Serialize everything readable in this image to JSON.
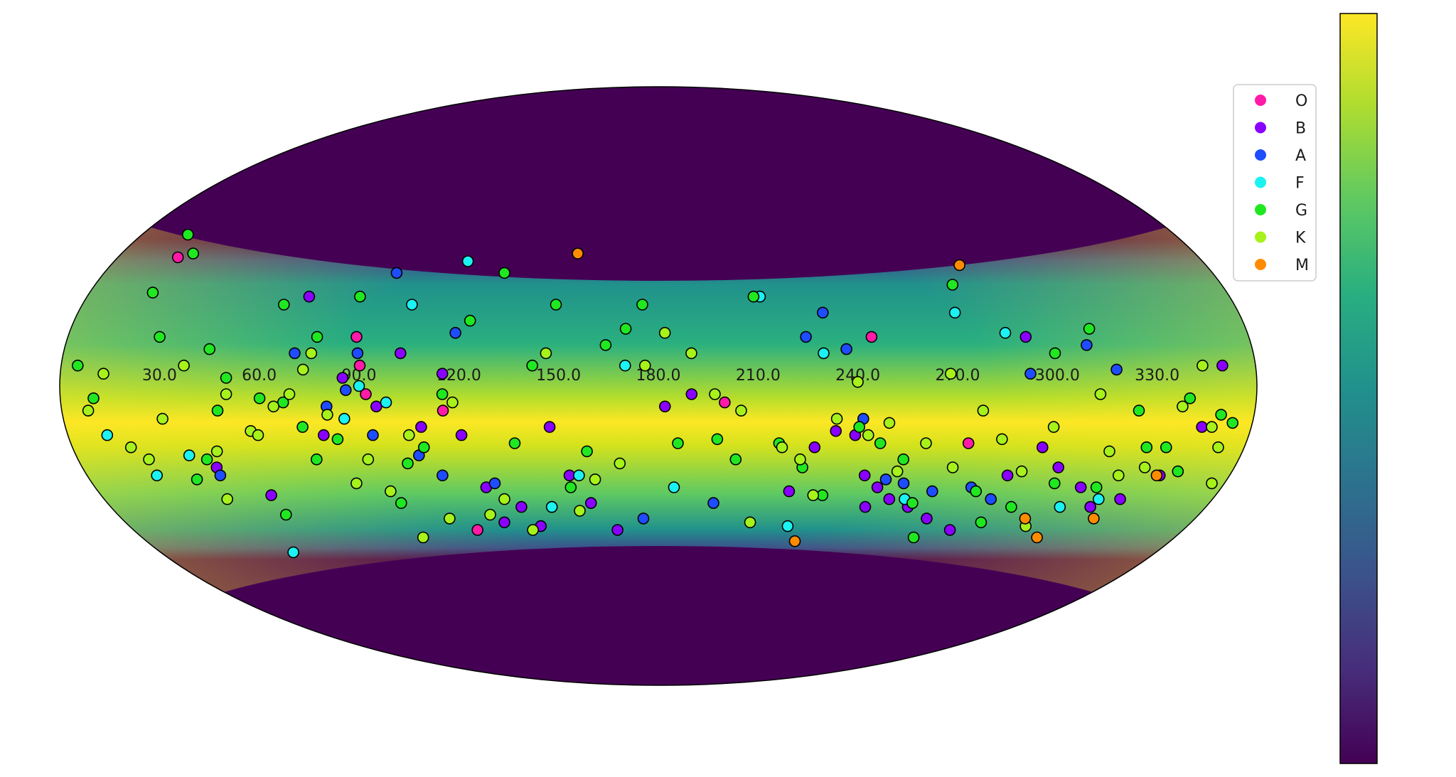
{
  "chart_data": {
    "type": "scatter",
    "projection": "mollweide",
    "title": "",
    "xlabel": "",
    "ylabel": "",
    "x_ticks": [
      "30.0",
      "60.0",
      "90.0",
      "120.0",
      "150.0",
      "180.0",
      "210.0",
      "240.0",
      "270.0",
      "300.0",
      "330.0"
    ],
    "xlim": [
      0,
      360
    ],
    "ylim": [
      -90,
      90
    ],
    "grid": false,
    "legend_position": "top-right",
    "colormap": "viridis",
    "colorbar": {
      "position": "right",
      "tick_labels": []
    },
    "background_density": {
      "description_free": true,
      "band_center_lat": -3,
      "visible_lat_range": [
        -40,
        30
      ]
    },
    "series": [
      {
        "name": "O",
        "color": "#ff1aa8",
        "points": [
          [
            20,
            32
          ],
          [
            90,
            5
          ],
          [
            88,
            12
          ],
          [
            92,
            -2
          ],
          [
            115,
            -6
          ],
          [
            200,
            -4
          ],
          [
            245,
            12
          ],
          [
            275,
            -14
          ],
          [
            118,
            -36
          ]
        ]
      },
      {
        "name": "B",
        "color": "#8a00ff",
        "points": [
          [
            42,
            -20
          ],
          [
            55,
            -27
          ],
          [
            70,
            22
          ],
          [
            78,
            -12
          ],
          [
            85,
            2
          ],
          [
            95,
            -5
          ],
          [
            102,
            8
          ],
          [
            108,
            -10
          ],
          [
            115,
            3
          ],
          [
            120,
            -12
          ],
          [
            125,
            -25
          ],
          [
            128,
            -34
          ],
          [
            135,
            -30
          ],
          [
            140,
            -35
          ],
          [
            147,
            -10
          ],
          [
            152,
            -22
          ],
          [
            158,
            -29
          ],
          [
            166,
            -36
          ],
          [
            182,
            -5
          ],
          [
            190,
            -2
          ],
          [
            222,
            -26
          ],
          [
            228,
            -15
          ],
          [
            234,
            -11
          ],
          [
            240,
            -12
          ],
          [
            245,
            -22
          ],
          [
            248,
            -30
          ],
          [
            250,
            -25
          ],
          [
            255,
            -28
          ],
          [
            262,
            -30
          ],
          [
            270,
            -33
          ],
          [
            280,
            -36
          ],
          [
            290,
            -22
          ],
          [
            292,
            12
          ],
          [
            298,
            -15
          ],
          [
            305,
            -20
          ],
          [
            315,
            -25
          ],
          [
            322,
            -30
          ],
          [
            330,
            -28
          ],
          [
            338,
            -22
          ],
          [
            345,
            -10
          ],
          [
            350,
            5
          ]
        ]
      },
      {
        "name": "A",
        "color": "#1e4cff",
        "points": [
          [
            42,
            -22
          ],
          [
            70,
            8
          ],
          [
            80,
            -5
          ],
          [
            86,
            -1
          ],
          [
            89,
            8
          ],
          [
            93,
            -12
          ],
          [
            95,
            28
          ],
          [
            106,
            -17
          ],
          [
            112,
            -22
          ],
          [
            118,
            13
          ],
          [
            128,
            -24
          ],
          [
            145,
            -30
          ],
          [
            175,
            -33
          ],
          [
            198,
            -29
          ],
          [
            225,
            12
          ],
          [
            231,
            18
          ],
          [
            237,
            9
          ],
          [
            242,
            -8
          ],
          [
            252,
            -23
          ],
          [
            258,
            -24
          ],
          [
            268,
            -26
          ],
          [
            280,
            -25
          ],
          [
            288,
            -28
          ],
          [
            292,
            3
          ],
          [
            310,
            10
          ],
          [
            318,
            4
          ]
        ]
      },
      {
        "name": "F",
        "color": "#1cf2f2",
        "points": [
          [
            12,
            -12
          ],
          [
            22,
            -22
          ],
          [
            35,
            -17
          ],
          [
            48,
            -42
          ],
          [
            85,
            -8
          ],
          [
            90,
            0
          ],
          [
            98,
            -4
          ],
          [
            103,
            20
          ],
          [
            117,
            31
          ],
          [
            145,
            -30
          ],
          [
            155,
            -22
          ],
          [
            170,
            5
          ],
          [
            185,
            -25
          ],
          [
            212,
            22
          ],
          [
            224,
            -35
          ],
          [
            230,
            8
          ],
          [
            260,
            -28
          ],
          [
            272,
            18
          ],
          [
            286,
            13
          ],
          [
            312,
            -30
          ],
          [
            323,
            -28
          ]
        ]
      },
      {
        "name": "G",
        "color": "#20e820",
        "points": [
          [
            5,
            5
          ],
          [
            10,
            -3
          ],
          [
            16,
            38
          ],
          [
            20,
            23
          ],
          [
            24,
            33
          ],
          [
            28,
            12
          ],
          [
            34,
            -23
          ],
          [
            40,
            -18
          ],
          [
            44,
            9
          ],
          [
            47,
            -6
          ],
          [
            50,
            2
          ],
          [
            56,
            -32
          ],
          [
            60,
            -3
          ],
          [
            63,
            20
          ],
          [
            67,
            -4
          ],
          [
            72,
            -10
          ],
          [
            74,
            -18
          ],
          [
            76,
            12
          ],
          [
            82,
            -13
          ],
          [
            86,
            22
          ],
          [
            96,
            -29
          ],
          [
            102,
            -19
          ],
          [
            108,
            -15
          ],
          [
            115,
            -2
          ],
          [
            122,
            16
          ],
          [
            130,
            28
          ],
          [
            136,
            -14
          ],
          [
            142,
            5
          ],
          [
            148,
            20
          ],
          [
            152,
            -25
          ],
          [
            158,
            -16
          ],
          [
            164,
            10
          ],
          [
            170,
            14
          ],
          [
            175,
            20
          ],
          [
            186,
            -14
          ],
          [
            198,
            -13
          ],
          [
            204,
            -18
          ],
          [
            210,
            22
          ],
          [
            217,
            -14
          ],
          [
            225,
            -20
          ],
          [
            233,
            -27
          ],
          [
            241,
            -10
          ],
          [
            248,
            -14
          ],
          [
            256,
            -18
          ],
          [
            263,
            -29
          ],
          [
            269,
            -38
          ],
          [
            274,
            25
          ],
          [
            282,
            -26
          ],
          [
            289,
            -34
          ],
          [
            296,
            -30
          ],
          [
            300,
            8
          ],
          [
            306,
            -24
          ],
          [
            312,
            14
          ],
          [
            320,
            -25
          ],
          [
            325,
            -6
          ],
          [
            330,
            -15
          ],
          [
            336,
            -15
          ],
          [
            340,
            -3
          ],
          [
            343,
            -21
          ],
          [
            350,
            -7
          ],
          [
            354,
            -9
          ]
        ]
      },
      {
        "name": "K",
        "color": "#a6f21a",
        "points": [
          [
            8,
            -6
          ],
          [
            13,
            3
          ],
          [
            18,
            -15
          ],
          [
            22,
            -18
          ],
          [
            30,
            -8
          ],
          [
            37,
            5
          ],
          [
            40,
            -28
          ],
          [
            44,
            -16
          ],
          [
            50,
            -2
          ],
          [
            56,
            -11
          ],
          [
            58,
            -12
          ],
          [
            64,
            -5
          ],
          [
            69,
            -2
          ],
          [
            73,
            4
          ],
          [
            75,
            8
          ],
          [
            80,
            -7
          ],
          [
            84,
            -24
          ],
          [
            90,
            -18
          ],
          [
            94,
            -26
          ],
          [
            98,
            -38
          ],
          [
            104,
            -12
          ],
          [
            110,
            -33
          ],
          [
            118,
            -4
          ],
          [
            124,
            -32
          ],
          [
            130,
            -28
          ],
          [
            137,
            -36
          ],
          [
            146,
            8
          ],
          [
            154,
            -31
          ],
          [
            160,
            -23
          ],
          [
            168,
            -19
          ],
          [
            176,
            5
          ],
          [
            182,
            13
          ],
          [
            190,
            8
          ],
          [
            197,
            -2
          ],
          [
            205,
            -6
          ],
          [
            211,
            -34
          ],
          [
            218,
            -15
          ],
          [
            224,
            -18
          ],
          [
            230,
            -27
          ],
          [
            234,
            -8
          ],
          [
            240,
            1
          ],
          [
            244,
            -12
          ],
          [
            250,
            -9
          ],
          [
            255,
            -21
          ],
          [
            262,
            -14
          ],
          [
            268,
            3
          ],
          [
            272,
            -20
          ],
          [
            278,
            -6
          ],
          [
            285,
            -13
          ],
          [
            294,
            -21
          ],
          [
            300,
            -10
          ],
          [
            305,
            -35
          ],
          [
            313,
            -2
          ],
          [
            319,
            -16
          ],
          [
            325,
            -22
          ],
          [
            332,
            -20
          ],
          [
            338,
            -5
          ],
          [
            344,
            5
          ],
          [
            348,
            -10
          ],
          [
            352,
            -15
          ],
          [
            356,
            -24
          ]
        ]
      },
      {
        "name": "M",
        "color": "#ff8c00",
        "points": [
          [
            153,
            33
          ],
          [
            228,
            -39
          ],
          [
            279,
            30
          ],
          [
            303,
            -33
          ],
          [
            312,
            -38
          ],
          [
            326,
            -33
          ],
          [
            337,
            -22
          ]
        ]
      }
    ]
  }
}
